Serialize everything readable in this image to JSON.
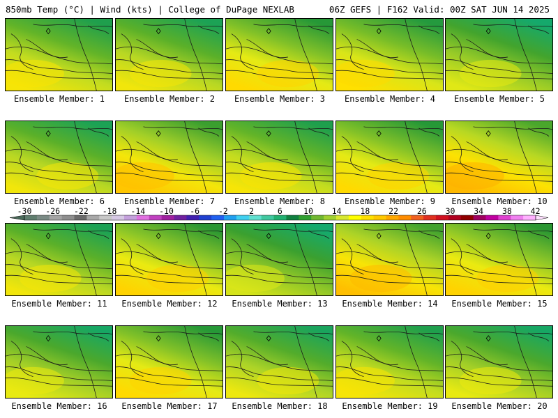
{
  "header": {
    "left_title": "850mb Temp (°C) | Wind (kts) | College of DuPage NEXLAB",
    "right_title": "06Z GEFS | F162 Valid: 00Z SAT JUN 14 2025"
  },
  "members": [
    {
      "label": "Ensemble Member: 1",
      "member": 1,
      "warmth": 0.55
    },
    {
      "label": "Ensemble Member: 2",
      "member": 2,
      "warmth": 0.5
    },
    {
      "label": "Ensemble Member: 3",
      "member": 3,
      "warmth": 0.7
    },
    {
      "label": "Ensemble Member: 4",
      "member": 4,
      "warmth": 0.65
    },
    {
      "label": "Ensemble Member: 5",
      "member": 5,
      "warmth": 0.35
    },
    {
      "label": "Ensemble Member: 6",
      "member": 6,
      "warmth": 0.5
    },
    {
      "label": "Ensemble Member: 7",
      "member": 7,
      "warmth": 0.85
    },
    {
      "label": "Ensemble Member: 8",
      "member": 8,
      "warmth": 0.55
    },
    {
      "label": "Ensemble Member: 9",
      "member": 9,
      "warmth": 0.7
    },
    {
      "label": "Ensemble Member: 10",
      "member": 10,
      "warmth": 0.95
    },
    {
      "label": "Ensemble Member: 11",
      "member": 11,
      "warmth": 0.5
    },
    {
      "label": "Ensemble Member: 12",
      "member": 12,
      "warmth": 0.75
    },
    {
      "label": "Ensemble Member: 13",
      "member": 13,
      "warmth": 0.3
    },
    {
      "label": "Ensemble Member: 14",
      "member": 14,
      "warmth": 0.9
    },
    {
      "label": "Ensemble Member: 15",
      "member": 15,
      "warmth": 0.75
    },
    {
      "label": "Ensemble Member: 16",
      "member": 16,
      "warmth": 0.4
    },
    {
      "label": "Ensemble Member: 17",
      "member": 17,
      "warmth": 0.7
    },
    {
      "label": "Ensemble Member: 18",
      "member": 18,
      "warmth": 0.45
    },
    {
      "label": "Ensemble Member: 19",
      "member": 19,
      "warmth": 0.55
    },
    {
      "label": "Ensemble Member: 20",
      "member": 20,
      "warmth": 0.4
    }
  ],
  "colorbar": {
    "ticks": [
      "-30",
      "-26",
      "-22",
      "-18",
      "-14",
      "-10",
      "-6",
      "-2",
      "2",
      "6",
      "10",
      "14",
      "18",
      "22",
      "26",
      "30",
      "34",
      "38",
      "42"
    ],
    "colors": [
      "#5f7d6e",
      "#7a8a85",
      "#a4a4a4",
      "#8e8e8e",
      "#6a6a6a",
      "#a8a8a8",
      "#c8c8c8",
      "#d6c8e4",
      "#c4a0dc",
      "#e070e0",
      "#c040c0",
      "#a020a0",
      "#7020a0",
      "#4020b0",
      "#2040d0",
      "#2060f0",
      "#20a0f0",
      "#40d0f0",
      "#60e0d0",
      "#40c8a0",
      "#20b070",
      "#108040",
      "#30a030",
      "#70b830",
      "#a0d030",
      "#d8e830",
      "#ffff00",
      "#ffe000",
      "#ffc800",
      "#ffa800",
      "#ff8c00",
      "#f06020",
      "#e03020",
      "#d01020",
      "#b00020",
      "#900000",
      "#a00060",
      "#c000a0",
      "#e040d0",
      "#f080f0",
      "#ffb0ff"
    ]
  }
}
